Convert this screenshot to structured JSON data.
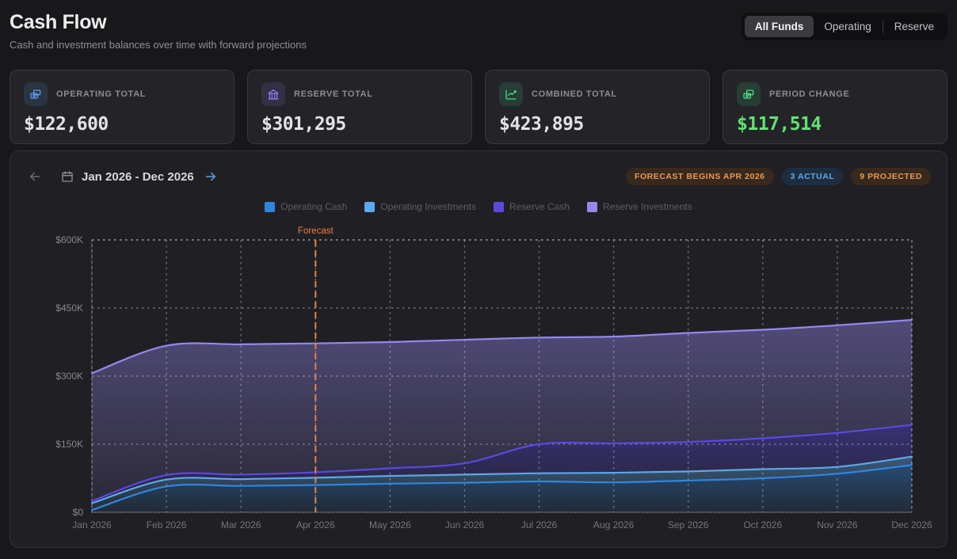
{
  "header": {
    "title": "Cash Flow",
    "subtitle": "Cash and investment balances over time with forward projections"
  },
  "fund_tabs": [
    {
      "label": "All Funds",
      "active": true
    },
    {
      "label": "Operating",
      "active": false
    },
    {
      "label": "Reserve",
      "active": false
    }
  ],
  "stats": [
    {
      "label": "OPERATING TOTAL",
      "value": "$122,600",
      "icon": "banknotes",
      "accent": "#5b9ee8"
    },
    {
      "label": "RESERVE TOTAL",
      "value": "$301,295",
      "icon": "bank",
      "accent": "#8b7cf0"
    },
    {
      "label": "COMBINED TOTAL",
      "value": "$423,895",
      "icon": "chart-line",
      "accent": "#3ddc8e"
    },
    {
      "label": "PERIOD CHANGE",
      "value": "$117,514",
      "icon": "banknotes",
      "accent": "#4ade80",
      "value_color": "#5ee573"
    }
  ],
  "chart_header": {
    "range": "Jan 2026 - Dec 2026",
    "badges": [
      {
        "label": "FORECAST BEGINS APR 2026",
        "color": "#e79a55",
        "bg": "#39291d"
      },
      {
        "label": "3 ACTUAL",
        "color": "#64a7e8",
        "bg": "#1d2e41"
      },
      {
        "label": "9 PROJECTED",
        "color": "#e79a55",
        "bg": "#39291d"
      }
    ]
  },
  "chart_data": {
    "type": "area",
    "stacked": true,
    "x": [
      "Jan 2026",
      "Feb 2026",
      "Mar 2026",
      "Apr 2026",
      "May 2026",
      "Jun 2026",
      "Jul 2026",
      "Aug 2026",
      "Sep 2026",
      "Oct 2026",
      "Nov 2026",
      "Dec 2026"
    ],
    "series": [
      {
        "name": "Operating Cash",
        "color": "#2f86e0",
        "values": [
          5000,
          57000,
          58000,
          60000,
          63000,
          65000,
          68000,
          66000,
          70000,
          75000,
          85000,
          104000
        ]
      },
      {
        "name": "Operating Investments",
        "color": "#5ca8ea",
        "values": [
          15000,
          15000,
          15000,
          16000,
          17000,
          18000,
          18000,
          21000,
          20000,
          20000,
          15000,
          18600
        ]
      },
      {
        "name": "Reserve Cash",
        "color": "#5a49e0",
        "values": [
          5000,
          10000,
          10000,
          12000,
          17000,
          25000,
          64000,
          65000,
          65000,
          68000,
          75000,
          70000
        ]
      },
      {
        "name": "Reserve Investments",
        "color": "#9487ee",
        "values": [
          281381,
          285000,
          287000,
          284000,
          278000,
          272000,
          235000,
          235000,
          240000,
          239000,
          237000,
          231295
        ]
      }
    ],
    "y_ticks": [
      {
        "value": 0,
        "label": "$0"
      },
      {
        "value": 150000,
        "label": "$150K"
      },
      {
        "value": 300000,
        "label": "$300K"
      },
      {
        "value": 450000,
        "label": "$450K"
      },
      {
        "value": 600000,
        "label": "$600K"
      }
    ],
    "ylim": [
      0,
      600000
    ],
    "grid": "dotted",
    "legend_position": "top",
    "forecast": {
      "label": "Forecast",
      "begins_at": "Apr 2026",
      "color": "#e8823f"
    },
    "actual_points": 3,
    "projected_points": 9
  }
}
